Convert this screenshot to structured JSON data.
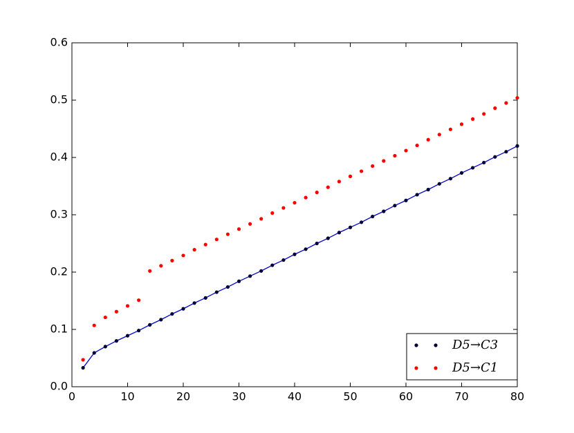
{
  "chart_data": {
    "type": "scatter",
    "x": [
      2,
      4,
      6,
      8,
      10,
      12,
      14,
      16,
      18,
      20,
      22,
      24,
      26,
      28,
      30,
      32,
      34,
      36,
      38,
      40,
      42,
      44,
      46,
      48,
      50,
      52,
      54,
      56,
      58,
      60,
      62,
      64,
      66,
      68,
      70,
      72,
      74,
      76,
      78,
      80
    ],
    "series": [
      {
        "name": "D5→C3",
        "color": "#000033",
        "line_color": "#0000cc",
        "values": [
          0.033,
          0.059,
          0.07,
          0.08,
          0.089,
          0.098,
          0.108,
          0.117,
          0.127,
          0.136,
          0.146,
          0.155,
          0.165,
          0.174,
          0.184,
          0.193,
          0.202,
          0.212,
          0.221,
          0.231,
          0.24,
          0.25,
          0.259,
          0.269,
          0.278,
          0.287,
          0.297,
          0.306,
          0.316,
          0.325,
          0.335,
          0.344,
          0.354,
          0.363,
          0.373,
          0.382,
          0.391,
          0.401,
          0.41,
          0.42
        ]
      },
      {
        "name": "D5→C1",
        "color": "#ff0000",
        "values": [
          0.047,
          0.107,
          0.121,
          0.131,
          0.141,
          0.151,
          0.202,
          0.211,
          0.22,
          0.229,
          0.239,
          0.248,
          0.257,
          0.266,
          0.275,
          0.284,
          0.293,
          0.303,
          0.312,
          0.321,
          0.33,
          0.339,
          0.348,
          0.358,
          0.367,
          0.376,
          0.385,
          0.394,
          0.403,
          0.412,
          0.421,
          0.431,
          0.44,
          0.449,
          0.458,
          0.467,
          0.476,
          0.486,
          0.495,
          0.504
        ]
      }
    ],
    "xlim": [
      0,
      80
    ],
    "xticks": [
      0,
      10,
      20,
      30,
      40,
      50,
      60,
      70,
      80
    ],
    "ylim": [
      0,
      0.6
    ],
    "yticks": [
      {
        "value": 0,
        "label": "0.0"
      },
      0.1,
      0.2,
      0.3,
      0.4,
      0.5,
      0.6
    ],
    "legend": "lower right"
  }
}
